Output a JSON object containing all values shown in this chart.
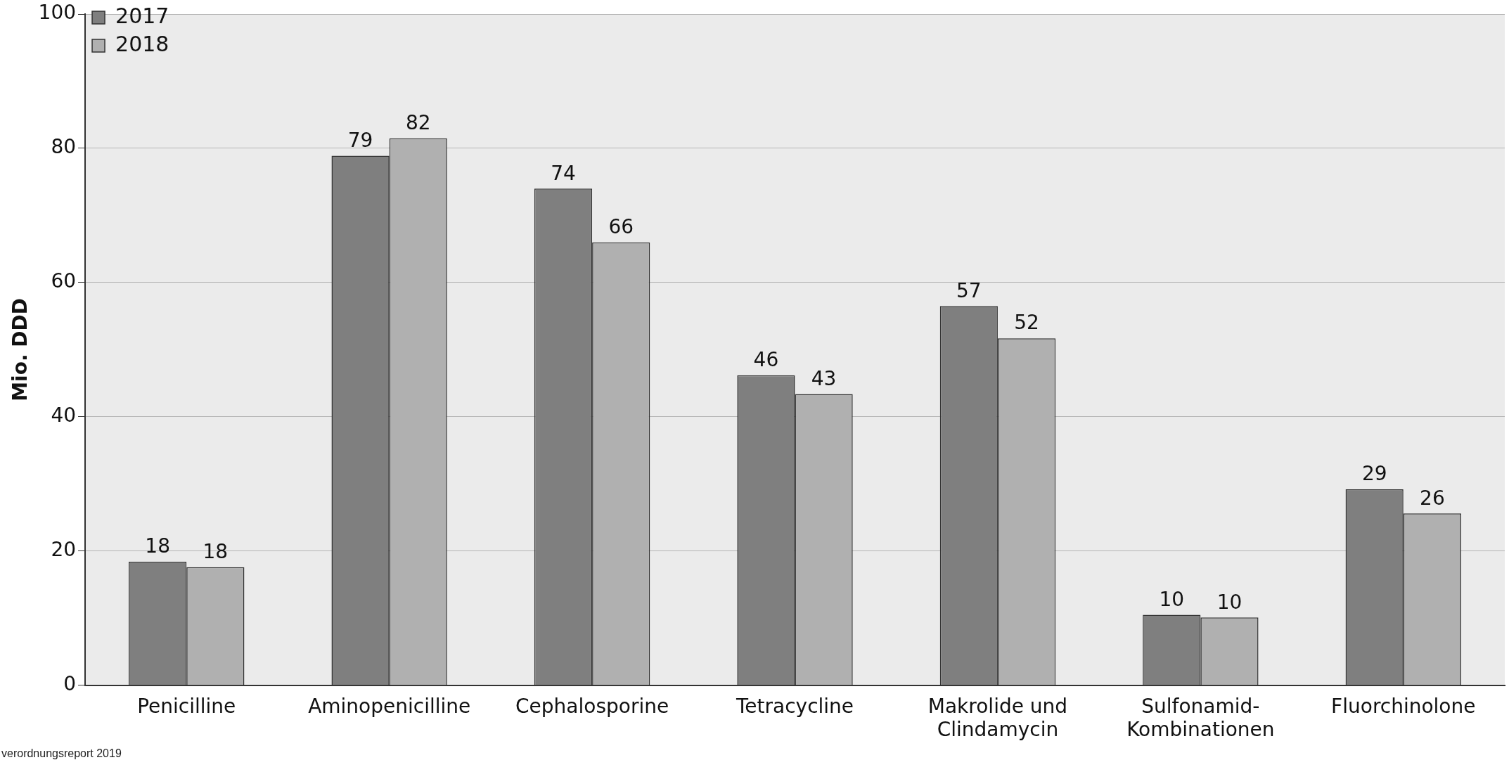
{
  "chart_data": {
    "type": "bar",
    "ylabel": "Mio. DDD",
    "categories": [
      "Penicilline",
      "Aminopenicilline",
      "Cephalosporine",
      "Tetracycline",
      "Makrolide und Clindamycin",
      "Sulfonamid-Kombinationen",
      "Fluorchinolone"
    ],
    "series": [
      {
        "name": "2017",
        "color": "#7f7f7f",
        "values": [
          18.4,
          78.9,
          74.0,
          46.2,
          56.5,
          10.5,
          29.2
        ],
        "value_labels": [
          "18",
          "79",
          "74",
          "46",
          "57",
          "10",
          "29"
        ]
      },
      {
        "name": "2018",
        "color": "#b0b0b0",
        "values": [
          17.6,
          81.5,
          66.0,
          43.4,
          51.7,
          10.1,
          25.6
        ],
        "value_labels": [
          "18",
          "82",
          "66",
          "43",
          "52",
          "10",
          "26"
        ]
      }
    ],
    "ylim": [
      0,
      100
    ],
    "yticks": [
      0,
      20,
      40,
      60,
      80,
      100
    ],
    "grid": "y",
    "legend": "top left",
    "annotations": [
      "verordnungsreport 2019"
    ]
  }
}
